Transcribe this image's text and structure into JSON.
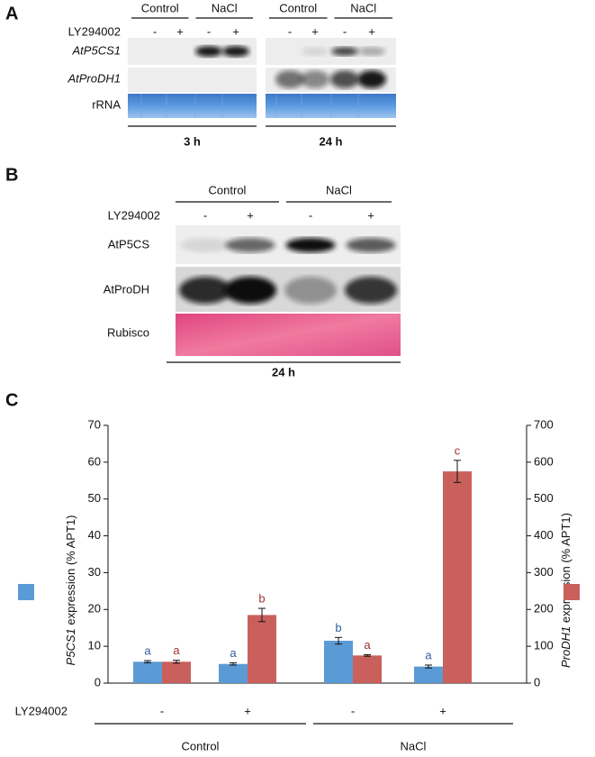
{
  "panel_a": {
    "letter": "A",
    "treatment_label": "LY294002",
    "signs": [
      "-",
      "+",
      "-",
      "+"
    ],
    "blocks": [
      {
        "time": "3 h",
        "conditions": [
          "Control",
          "NaCl"
        ]
      },
      {
        "time": "24 h",
        "conditions": [
          "Control",
          "NaCl"
        ]
      }
    ],
    "rows": [
      "AtP5CS1",
      "AtProDH1",
      "rRNA"
    ]
  },
  "panel_b": {
    "letter": "B",
    "treatment_label": "LY294002",
    "signs": [
      "-",
      "+",
      "-",
      "+"
    ],
    "conditions": [
      "Control",
      "NaCl"
    ],
    "time": "24 h",
    "rows": [
      "AtP5CS",
      "AtProDH",
      "Rubisco"
    ]
  },
  "chart_data": {
    "type": "bar",
    "letter": "C",
    "treatment_label": "LY294002",
    "categories": [
      "-",
      "+",
      "-",
      "+"
    ],
    "groups": [
      "Control",
      "NaCl"
    ],
    "ylabel_suffix": " expression (% APT1)",
    "ylim": [
      0,
      70
    ],
    "yticks": [
      0,
      10,
      20,
      30,
      40,
      50,
      60,
      70
    ],
    "y2lim": [
      0,
      700
    ],
    "y2ticks": [
      0,
      100,
      200,
      300,
      400,
      500,
      600,
      700
    ],
    "series": [
      {
        "name": "P5CS1",
        "color": "#5b9bd5",
        "values": [
          5.8,
          5.2,
          11.5,
          4.5
        ],
        "errors": [
          0.3,
          0.3,
          0.9,
          0.4
        ],
        "letters": [
          "a",
          "a",
          "b",
          "a"
        ],
        "letter_color": "#2f5f9e"
      },
      {
        "name": "ProDH1",
        "color": "#c9605c",
        "axis": "y2",
        "values": [
          58,
          185,
          75,
          575
        ],
        "errors": [
          4,
          18,
          2,
          30
        ],
        "letters": [
          "a",
          "b",
          "a",
          "c"
        ],
        "letter_color": "#9e2f2f"
      }
    ]
  }
}
